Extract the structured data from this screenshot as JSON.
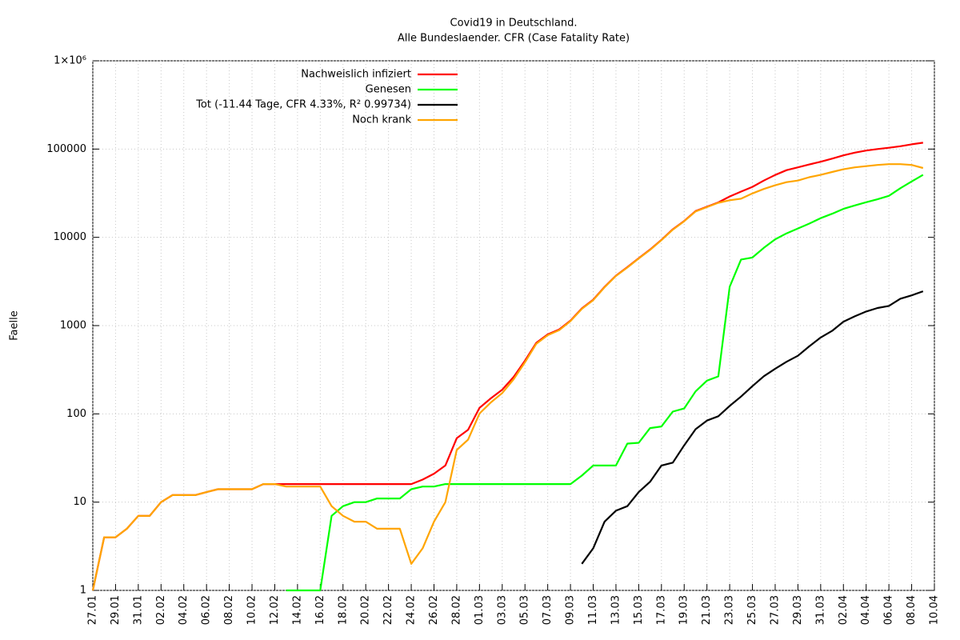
{
  "chart_data": {
    "type": "line",
    "title": "Covid19 in Deutschland.",
    "subtitle": "Alle Bundeslaender. CFR (Case Fatality Rate)",
    "y_label": "Faelle",
    "log_y": true,
    "grid": true,
    "legend": "top",
    "ylim": [
      1,
      1000000
    ],
    "yticks": [
      1,
      10,
      100,
      1000,
      10000,
      100000,
      {
        "value": 1000000,
        "label": "1×10⁶"
      }
    ],
    "categories": [
      "27.01",
      null,
      "29.01",
      null,
      "31.01",
      null,
      "02.02",
      null,
      "04.02",
      null,
      "06.02",
      null,
      "08.02",
      null,
      "10.02",
      null,
      "12.02",
      null,
      "14.02",
      null,
      "16.02",
      null,
      "18.02",
      null,
      "20.02",
      null,
      "22.02",
      null,
      "24.02",
      null,
      "26.02",
      null,
      "28.02",
      null,
      "01.03",
      null,
      "03.03",
      null,
      "05.03",
      null,
      "07.03",
      null,
      "09.03",
      null,
      "11.03",
      null,
      "13.03",
      null,
      "15.03",
      null,
      "17.03",
      null,
      "19.03",
      null,
      "21.03",
      null,
      "23.03",
      null,
      "25.03",
      null,
      "27.03",
      null,
      "29.03",
      null,
      "31.03",
      null,
      "02.04",
      null,
      "04.04",
      null,
      "06.04",
      null,
      "08.04",
      null,
      "10.04"
    ],
    "series": [
      {
        "name": "Nachweislich infiziert",
        "color": "#ff0000",
        "values": [
          1,
          4,
          4,
          5,
          7,
          7,
          10,
          12,
          12,
          12,
          13,
          14,
          14,
          14,
          14,
          16,
          16,
          16,
          16,
          16,
          16,
          16,
          16,
          16,
          16,
          16,
          16,
          16,
          16,
          18,
          21,
          26,
          53,
          66,
          117,
          150,
          188,
          262,
          400,
          639,
          795,
          902,
          1139,
          1567,
          1966,
          2745,
          3675,
          4599,
          5813,
          7272,
          9367,
          12327,
          15320,
          19848,
          22213,
          24873,
          29056,
          32986,
          37323,
          43938,
          50871,
          57695,
          62095,
          66885,
          71808,
          77981,
          84794,
          91159,
          96092,
          100123,
          103374,
          107663,
          113296,
          118000,
          null
        ]
      },
      {
        "name": "Genesen",
        "color": "#00ff00",
        "values": [
          null,
          null,
          null,
          null,
          null,
          null,
          null,
          null,
          null,
          null,
          null,
          null,
          null,
          null,
          null,
          null,
          null,
          1,
          1,
          1,
          1,
          7,
          9,
          10,
          10,
          11,
          11,
          11,
          14,
          15,
          15,
          16,
          16,
          16,
          16,
          16,
          16,
          16,
          16,
          16,
          16,
          16,
          16,
          20,
          26,
          26,
          26,
          46,
          47,
          69,
          72,
          106,
          115,
          180,
          238,
          266,
          2750,
          5600,
          5900,
          7600,
          9500,
          11100,
          12600,
          14300,
          16500,
          18500,
          21000,
          23000,
          25000,
          27000,
          29500,
          36000,
          43000,
          51000,
          null
        ]
      },
      {
        "name": "Tot (-11.44 Tage, CFR 4.33%, R² 0.99734)",
        "color": "#000000",
        "values": [
          null,
          null,
          null,
          null,
          null,
          null,
          null,
          null,
          null,
          null,
          null,
          null,
          null,
          null,
          null,
          null,
          null,
          null,
          null,
          null,
          null,
          null,
          null,
          null,
          null,
          null,
          null,
          null,
          null,
          null,
          null,
          null,
          null,
          null,
          null,
          null,
          null,
          null,
          null,
          null,
          null,
          null,
          null,
          2,
          3,
          6,
          8,
          9,
          13,
          17,
          26,
          28,
          44,
          67,
          84,
          94,
          123,
          157,
          206,
          267,
          325,
          389,
          455,
          583,
          732,
          872,
          1107,
          1275,
          1444,
          1584,
          1672,
          2016,
          2200,
          2450,
          null
        ]
      },
      {
        "name": "Noch krank",
        "color": "#ffa500",
        "values": [
          1,
          4,
          4,
          5,
          7,
          7,
          10,
          12,
          12,
          12,
          13,
          14,
          14,
          14,
          14,
          16,
          16,
          15,
          15,
          15,
          15,
          9,
          7,
          6,
          6,
          5,
          5,
          5,
          2,
          3,
          6,
          10,
          39,
          51,
          101,
          135,
          172,
          246,
          384,
          623,
          779,
          886,
          1123,
          1547,
          1940,
          2719,
          3649,
          4553,
          5766,
          7203,
          9295,
          12221,
          15205,
          19668,
          21975,
          24607,
          26306,
          27386,
          31423,
          35338,
          38847,
          42200,
          44000,
          48000,
          51000,
          55000,
          59000,
          62000,
          64000,
          66000,
          67500,
          67500,
          66000,
          61000,
          null
        ]
      }
    ]
  }
}
